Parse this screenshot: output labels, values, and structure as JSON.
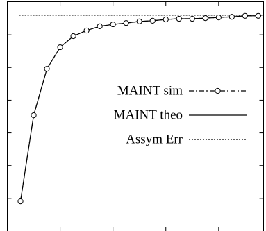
{
  "chart_data": {
    "type": "line",
    "x": [
      1,
      2,
      3,
      4,
      5,
      6,
      7,
      8,
      9,
      10,
      11,
      12,
      13,
      14,
      15,
      16,
      17,
      18,
      19
    ],
    "series": [
      {
        "name": "MAINT sim",
        "color": "#000000",
        "style": "dashdot",
        "marker": "circle",
        "values": [
          0.91,
          3.54,
          4.96,
          5.62,
          5.96,
          6.13,
          6.26,
          6.32,
          6.36,
          6.41,
          6.43,
          6.47,
          6.49,
          6.49,
          6.51,
          6.53,
          6.55,
          6.58,
          6.58
        ]
      },
      {
        "name": "MAINT theo",
        "color": "#000000",
        "style": "solid",
        "values": [
          0.91,
          3.54,
          4.96,
          5.62,
          5.96,
          6.13,
          6.26,
          6.32,
          6.36,
          6.41,
          6.43,
          6.47,
          6.49,
          6.49,
          6.51,
          6.53,
          6.55,
          6.58,
          6.58
        ]
      },
      {
        "name": "Assym Err",
        "color": "#000000",
        "style": "dotted",
        "x": [
          0.9,
          19.4
        ],
        "values": [
          6.6,
          6.6
        ]
      }
    ],
    "xlim": [
      0,
      19.4
    ],
    "ylim": [
      0,
      7
    ],
    "xticks": [
      4,
      8,
      12,
      16
    ],
    "yticks": [
      1,
      2,
      3,
      4,
      5,
      6
    ],
    "legend": "right"
  }
}
